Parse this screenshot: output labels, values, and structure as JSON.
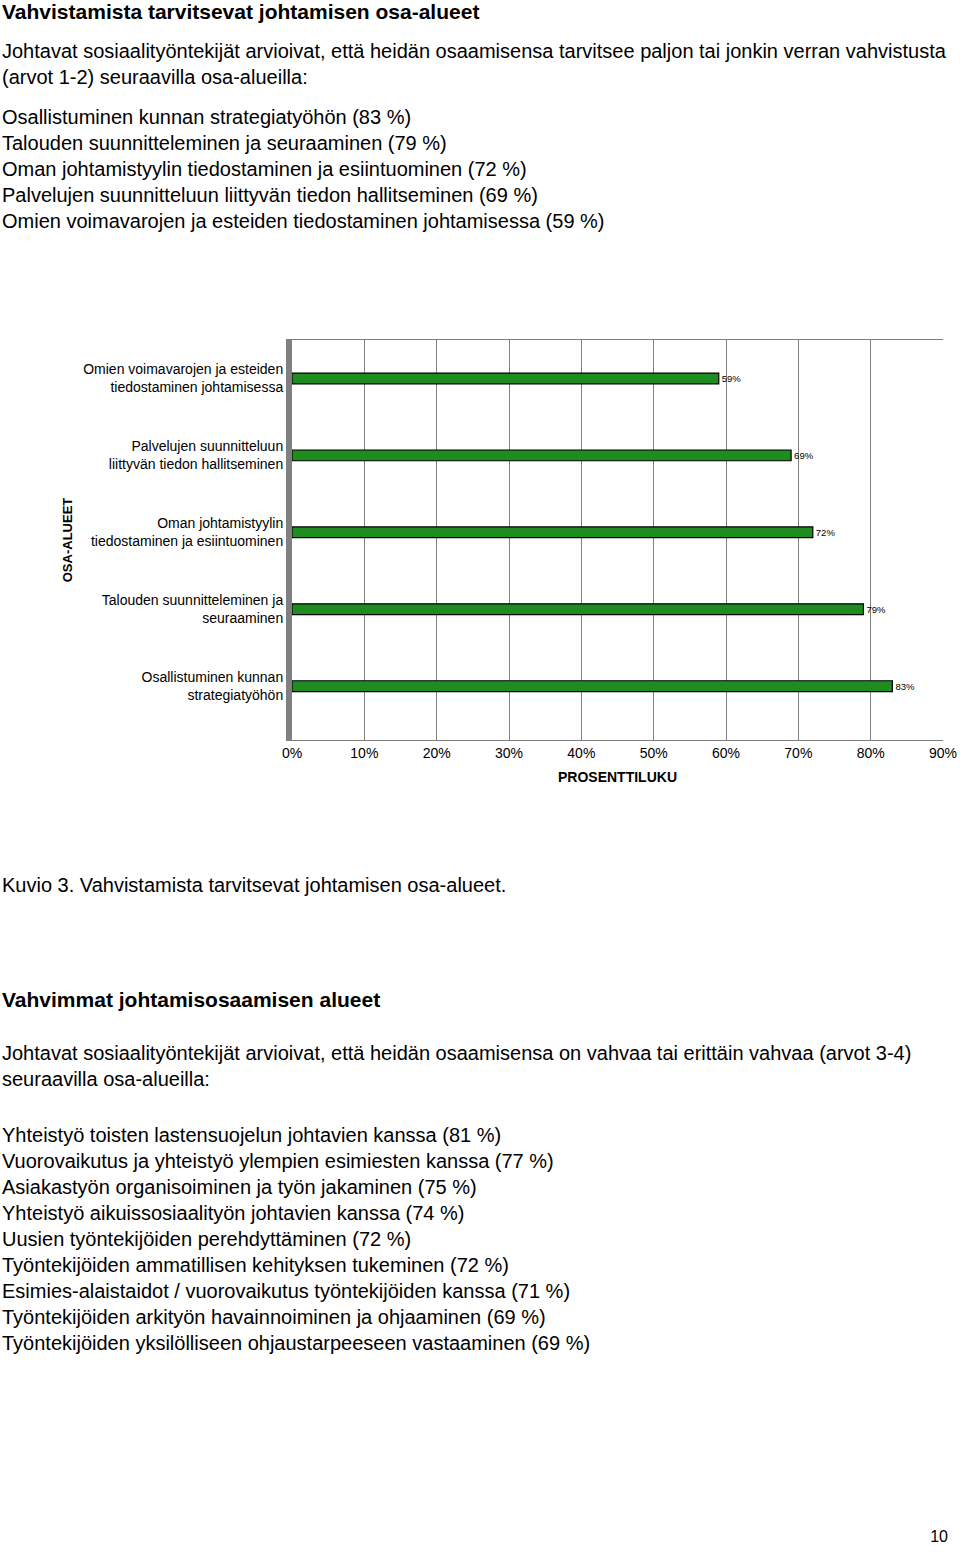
{
  "heading": "Vahvistamista tarvitsevat johtamisen osa-alueet",
  "intro": "Johtavat sosiaalityöntekijät arvioivat, että heidän osaamisensa tarvitsee paljon tai jonkin verran vahvistusta (arvot 1-2) seuraavilla osa-alueilla:",
  "items": [
    "Osallistuminen kunnan strategiatyöhön (83 %)",
    "Talouden suunnitteleminen ja seuraaminen (79 %)",
    "Oman johtamistyylin tiedostaminen ja esiintuominen (72 %)",
    "Palvelujen suunnitteluun liittyvän tiedon hallitseminen (69 %)",
    "Omien voimavarojen ja esteiden tiedostaminen johtamisessa (59 %)"
  ],
  "chart_data": {
    "type": "bar",
    "orientation": "horizontal",
    "categories": [
      "Osallistuminen kunnan strategiatyöhön",
      "Talouden suunnitteleminen ja seuraaminen",
      "Oman johtamistyylin tiedostaminen ja esiintuominen",
      "Palvelujen suunnitteluun liittyvän tiedon hallitseminen",
      "Omien voimavarojen ja esteiden tiedostaminen johtamisessa"
    ],
    "values": [
      83,
      79,
      72,
      69,
      59
    ],
    "value_labels": [
      "83%",
      "79%",
      "72%",
      "69%",
      "59%"
    ],
    "data_labels": true,
    "color": "#1e8c1e",
    "xlabel": "PROSENTTILUKU",
    "ylabel": "OSA-ALUEET",
    "xlim": [
      0,
      90
    ],
    "xticks": [
      {
        "value": 0,
        "label": "0%"
      },
      {
        "value": 10,
        "label": "10%"
      },
      {
        "value": 20,
        "label": "20%"
      },
      {
        "value": 30,
        "label": "30%"
      },
      {
        "value": 40,
        "label": "40%"
      },
      {
        "value": 50,
        "label": "50%"
      },
      {
        "value": 60,
        "label": "60%"
      },
      {
        "value": 70,
        "label": "70%"
      },
      {
        "value": 80,
        "label": "80%"
      },
      {
        "value": 90,
        "label": "90%"
      }
    ],
    "grid": true
  },
  "caption": "Kuvio 3. Vahvistamista tarvitsevat johtamisen osa-alueet.",
  "heading2": "Vahvimmat johtamisosaamisen alueet",
  "intro2": "Johtavat sosiaalityöntekijät arvioivat, että heidän osaamisensa on vahvaa tai erittäin vahvaa (arvot 3-4) seuraavilla osa-alueilla:",
  "items2": [
    "Yhteistyö toisten lastensuojelun johtavien kanssa (81 %)",
    "Vuorovaikutus ja yhteistyö ylempien esimiesten kanssa (77 %)",
    "Asiakastyön organisoiminen ja työn jakaminen (75 %)",
    "Yhteistyö aikuissosiaalityön johtavien kanssa (74 %)",
    "Uusien työntekijöiden perehdyttäminen (72 %)",
    "Työntekijöiden ammatillisen kehityksen tukeminen (72 %)",
    "Esimies-alaistaidot / vuorovaikutus työntekijöiden kanssa (71 %)",
    "Työntekijöiden arkityön havainnoiminen ja ohjaaminen (69 %)",
    "Työntekijöiden yksilölliseen ohjaustarpeeseen vastaaminen (69 %)"
  ],
  "page_number": "10"
}
